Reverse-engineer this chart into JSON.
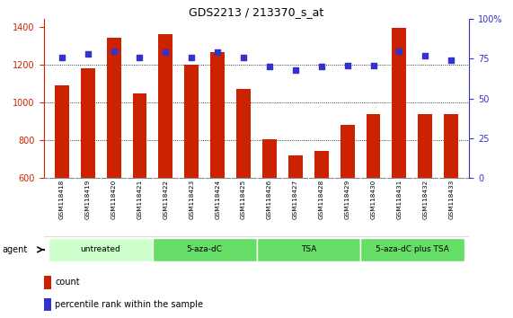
{
  "title": "GDS2213 / 213370_s_at",
  "samples": [
    "GSM118418",
    "GSM118419",
    "GSM118420",
    "GSM118421",
    "GSM118422",
    "GSM118423",
    "GSM118424",
    "GSM118425",
    "GSM118426",
    "GSM118427",
    "GSM118428",
    "GSM118429",
    "GSM118430",
    "GSM118431",
    "GSM118432",
    "GSM118433"
  ],
  "counts": [
    1090,
    1180,
    1340,
    1045,
    1360,
    1200,
    1265,
    1070,
    805,
    720,
    745,
    880,
    940,
    1395,
    940,
    940
  ],
  "percentiles": [
    76,
    78,
    80,
    76,
    79,
    76,
    79,
    76,
    70,
    68,
    70,
    71,
    71,
    80,
    77,
    74
  ],
  "groups": [
    {
      "label": "untreated",
      "start": 0,
      "end": 4,
      "color": "#ccffcc"
    },
    {
      "label": "5-aza-dC",
      "start": 4,
      "end": 8,
      "color": "#66dd66"
    },
    {
      "label": "TSA",
      "start": 8,
      "end": 12,
      "color": "#66dd66"
    },
    {
      "label": "5-aza-dC plus TSA",
      "start": 12,
      "end": 16,
      "color": "#66dd66"
    }
  ],
  "ylim_left": [
    600,
    1440
  ],
  "ylim_right": [
    0,
    100
  ],
  "bar_color": "#cc2200",
  "dot_color": "#3333cc",
  "grid_color": "#000000",
  "bg_color": "#ffffff",
  "axis_color_left": "#cc2200",
  "axis_color_right": "#3333cc",
  "legend_count_color": "#cc2200",
  "legend_pct_color": "#3333cc",
  "label_bg_color": "#cccccc",
  "label_border_color": "#ffffff"
}
